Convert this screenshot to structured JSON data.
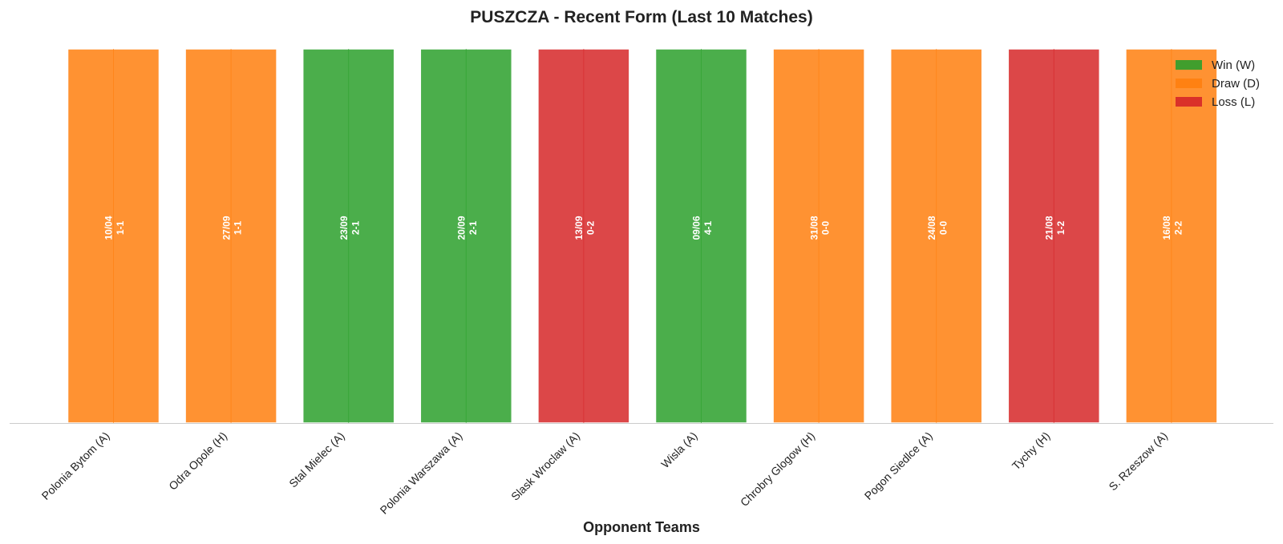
{
  "chart_data": {
    "type": "bar",
    "title": "PUSZCZA - Recent Form (Last 10 Matches)",
    "xlabel": "Opponent Teams",
    "ylabel": "",
    "ylim": [
      0,
      1
    ],
    "grid": false,
    "legend_position": "top-right",
    "categories": [
      "Polonia Bytom (A)",
      "Odra Opole (H)",
      "Stal Mielec (A)",
      "Polonia Warszawa (A)",
      "Slask Wroclaw (A)",
      "Wisla (A)",
      "Chrobry Glogow (H)",
      "Pogon Siedlce (A)",
      "Tychy (H)",
      "S. Rzeszow (A)"
    ],
    "values": [
      1,
      1,
      1,
      1,
      1,
      1,
      1,
      1,
      1,
      1
    ],
    "results": [
      "D",
      "D",
      "W",
      "W",
      "L",
      "W",
      "D",
      "D",
      "L",
      "D"
    ],
    "dates": [
      "10/04",
      "27/09",
      "23/09",
      "20/09",
      "13/09",
      "09/06",
      "31/08",
      "24/08",
      "21/08",
      "16/08"
    ],
    "scores": [
      "1-1",
      "1-1",
      "2-1",
      "2-1",
      "0-2",
      "4-1",
      "0-0",
      "0-0",
      "1-2",
      "2-2"
    ],
    "legend": [
      {
        "key": "W",
        "label": "Win (W)",
        "color": "#2ca02c"
      },
      {
        "key": "D",
        "label": "Draw (D)",
        "color": "#ff7f0e"
      },
      {
        "key": "L",
        "label": "Loss (L)",
        "color": "#d62728"
      }
    ]
  }
}
